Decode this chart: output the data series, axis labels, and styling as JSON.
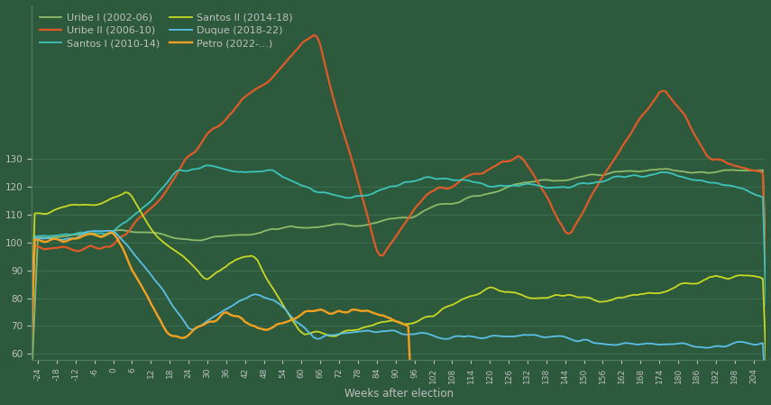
{
  "xlabel": "Weeks after election",
  "background_color": "#2d5a3d",
  "text_color": "#c0c0c0",
  "ylim": [
    58,
    185
  ],
  "xlim": [
    -26,
    208
  ],
  "yticks": [
    60,
    70,
    80,
    90,
    100,
    110,
    120,
    130
  ],
  "xtick_step": 6,
  "series": [
    {
      "label": "Uribe I (2002-06)",
      "color": "#8fba6a"
    },
    {
      "label": "Uribe II (2006-10)",
      "color": "#e05a28"
    },
    {
      "label": "Santos I (2010-14)",
      "color": "#3ec4bb"
    },
    {
      "label": "Santos II (2014-18)",
      "color": "#c8d825"
    },
    {
      "label": "Duque (2018-22)",
      "color": "#5bc0e8"
    },
    {
      "label": "Petro (2022-...)",
      "color": "#f5a020"
    }
  ]
}
